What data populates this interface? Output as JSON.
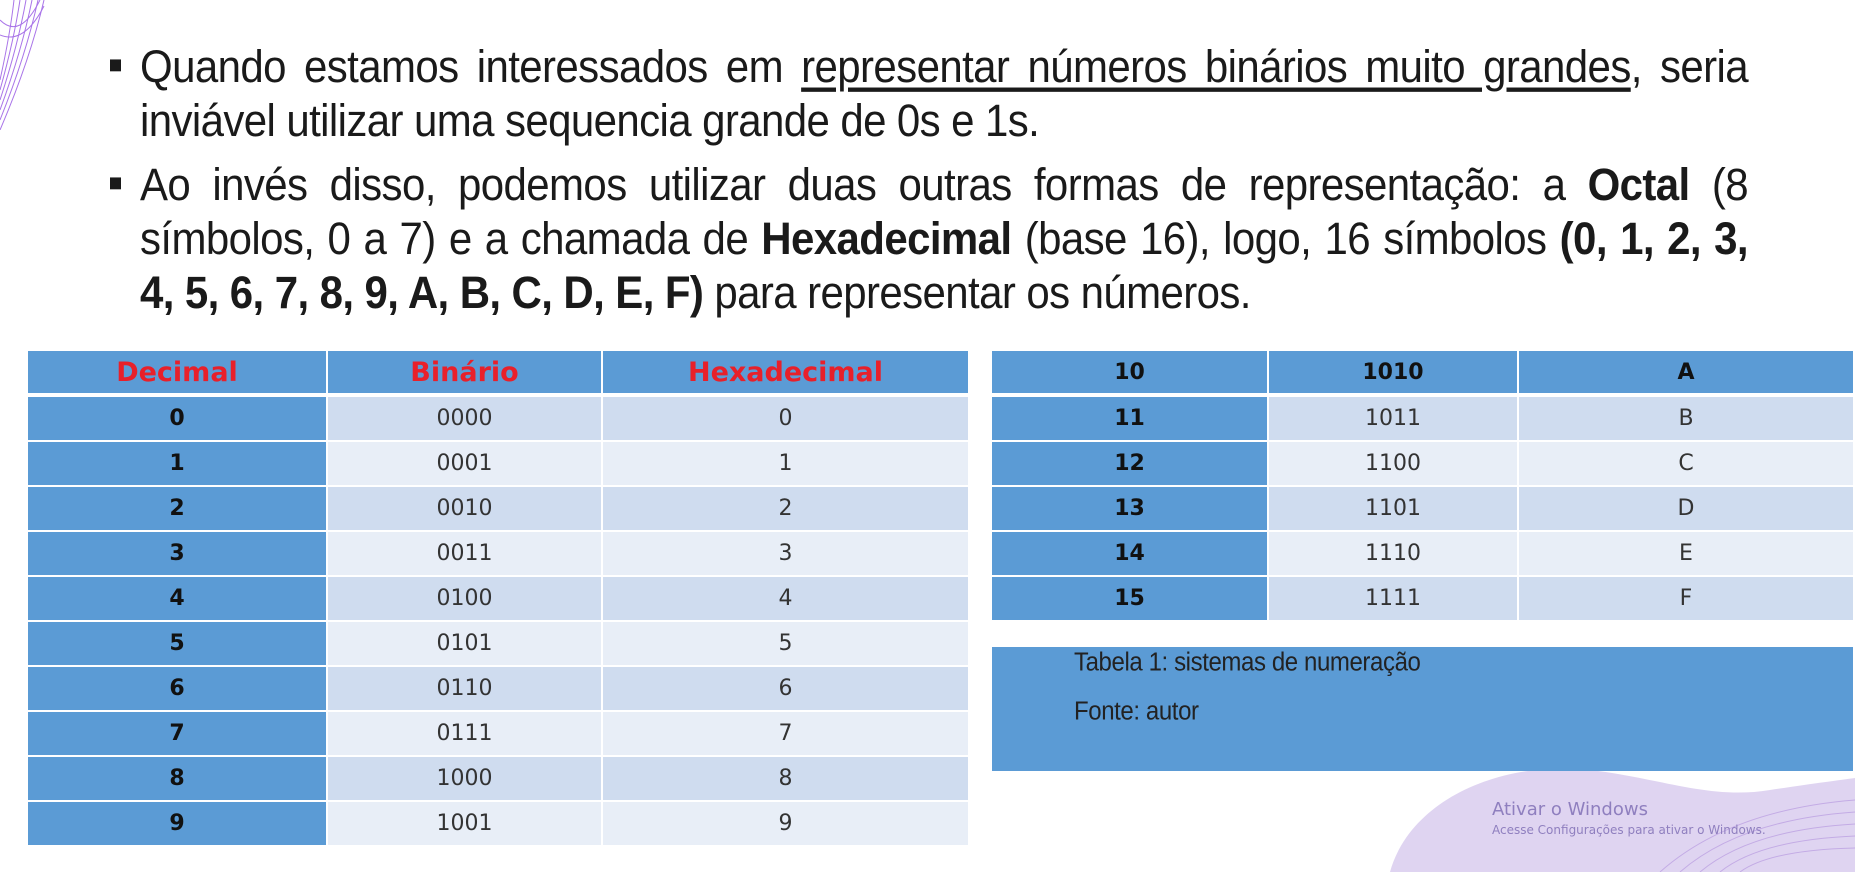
{
  "bullets": {
    "b1_before": "Quando estamos interessados em ",
    "b1_underline": "representar números binários muito grandes",
    "b1_after": ", seria inviável utilizar uma sequencia grande de 0s e 1s.",
    "b2_part1": "Ao invés disso, podemos utilizar duas outras formas de representação: a ",
    "b2_octal": "Octal",
    "b2_part2": " (8 símbolos, 0 a 7) e a chamada de ",
    "b2_hex": "Hexadecimal",
    "b2_part3": " (base 16), logo, 16 símbolos ",
    "b2_symbols": "(0, 1, 2, 3, 4, 5, 6, 7, 8, 9, A, B, C, D, E, F)",
    "b2_part4": " para representar os números."
  },
  "table_left": {
    "headers": [
      "Decimal",
      "Binário",
      "Hexadecimal"
    ],
    "rows": [
      [
        "0",
        "0000",
        "0"
      ],
      [
        "1",
        "0001",
        "1"
      ],
      [
        "2",
        "0010",
        "2"
      ],
      [
        "3",
        "0011",
        "3"
      ],
      [
        "4",
        "0100",
        "4"
      ],
      [
        "5",
        "0101",
        "5"
      ],
      [
        "6",
        "0110",
        "6"
      ],
      [
        "7",
        "0111",
        "7"
      ],
      [
        "8",
        "1000",
        "8"
      ],
      [
        "9",
        "1001",
        "9"
      ]
    ]
  },
  "table_right": {
    "first_row": [
      "10",
      "1010",
      "A"
    ],
    "rows": [
      [
        "11",
        "1011",
        "B"
      ],
      [
        "12",
        "1100",
        "C"
      ],
      [
        "13",
        "1101",
        "D"
      ],
      [
        "14",
        "1110",
        "E"
      ],
      [
        "15",
        "1111",
        "F"
      ]
    ]
  },
  "caption": {
    "title": "Tabela 1: sistemas de numeração",
    "source": "Fonte: autor"
  },
  "watermark": {
    "title": "Ativar o Windows",
    "subtitle": "Acesse Configurações para ativar o Windows."
  },
  "colors": {
    "table_header": "#5b9bd5",
    "header_text": "#e8202a",
    "row_odd": "#cfdcef",
    "row_even": "#e8eef7",
    "decoration": "#8e4fd6"
  }
}
